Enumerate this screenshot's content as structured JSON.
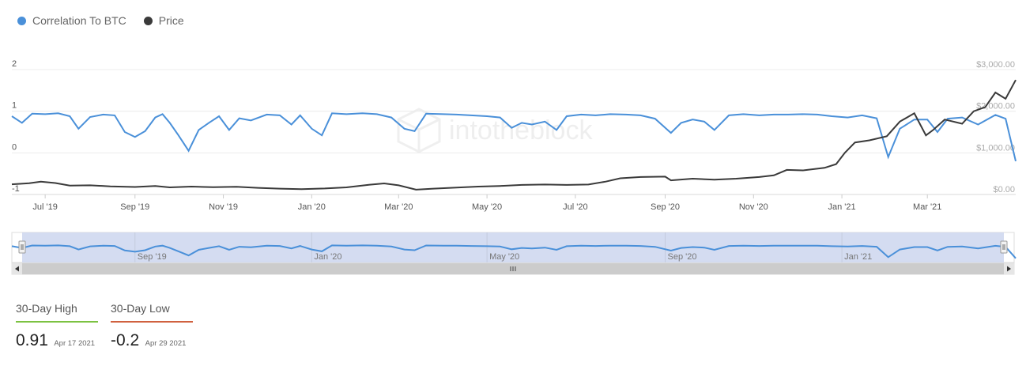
{
  "legend": {
    "correlation_label": "Correlation To BTC",
    "price_label": "Price"
  },
  "colors": {
    "correlation": "#4a90d9",
    "price": "#3a3a3a",
    "high": "#7cc242",
    "low": "#d0613f"
  },
  "watermark": "intotheblock",
  "chart_data": {
    "type": "line",
    "x_range": [
      "2019-06-08",
      "2021-05-01"
    ],
    "x_tick_labels": [
      "Jul '19",
      "Sep '19",
      "Nov '19",
      "Jan '20",
      "Mar '20",
      "May '20",
      "Jul '20",
      "Sep '20",
      "Nov '20",
      "Jan '21",
      "Mar '21"
    ],
    "y_left": {
      "range": [
        -1,
        2
      ],
      "ticks": [
        "2",
        "1",
        "0",
        "-1"
      ]
    },
    "y_right": {
      "range": [
        0,
        3000
      ],
      "ticks": [
        "$3,000.00",
        "$2,000.00",
        "$1,000.00",
        "$0.00"
      ]
    },
    "series": [
      {
        "name": "Correlation To BTC",
        "axis": "left",
        "x": [
          "2019-06-08",
          "2019-06-15",
          "2019-06-22",
          "2019-07-01",
          "2019-07-10",
          "2019-07-18",
          "2019-07-24",
          "2019-08-01",
          "2019-08-10",
          "2019-08-18",
          "2019-08-25",
          "2019-09-01",
          "2019-09-08",
          "2019-09-15",
          "2019-09-20",
          "2019-09-25",
          "2019-10-01",
          "2019-10-08",
          "2019-10-15",
          "2019-10-22",
          "2019-10-29",
          "2019-11-05",
          "2019-11-12",
          "2019-11-20",
          "2019-12-01",
          "2019-12-10",
          "2019-12-18",
          "2019-12-24",
          "2020-01-01",
          "2020-01-08",
          "2020-01-15",
          "2020-01-25",
          "2020-02-05",
          "2020-02-15",
          "2020-02-25",
          "2020-03-05",
          "2020-03-12",
          "2020-03-20",
          "2020-04-01",
          "2020-04-10",
          "2020-04-20",
          "2020-05-01",
          "2020-05-10",
          "2020-05-18",
          "2020-05-25",
          "2020-06-01",
          "2020-06-10",
          "2020-06-18",
          "2020-06-25",
          "2020-07-05",
          "2020-07-15",
          "2020-07-25",
          "2020-08-05",
          "2020-08-15",
          "2020-08-25",
          "2020-09-05",
          "2020-09-12",
          "2020-09-20",
          "2020-09-28",
          "2020-10-05",
          "2020-10-15",
          "2020-10-25",
          "2020-11-05",
          "2020-11-15",
          "2020-11-25",
          "2020-12-05",
          "2020-12-15",
          "2020-12-25",
          "2021-01-05",
          "2021-01-15",
          "2021-01-25",
          "2021-02-02",
          "2021-02-10",
          "2021-02-20",
          "2021-03-01",
          "2021-03-08",
          "2021-03-15",
          "2021-03-25",
          "2021-04-05",
          "2021-04-17",
          "2021-04-24",
          "2021-05-01"
        ],
        "values": [
          0.88,
          0.72,
          0.94,
          0.93,
          0.95,
          0.88,
          0.58,
          0.86,
          0.92,
          0.9,
          0.5,
          0.38,
          0.52,
          0.85,
          0.93,
          0.72,
          0.42,
          0.05,
          0.55,
          0.72,
          0.88,
          0.55,
          0.83,
          0.78,
          0.92,
          0.9,
          0.68,
          0.9,
          0.58,
          0.42,
          0.95,
          0.93,
          0.95,
          0.93,
          0.85,
          0.58,
          0.52,
          0.94,
          0.93,
          0.92,
          0.9,
          0.88,
          0.85,
          0.6,
          0.72,
          0.68,
          0.75,
          0.55,
          0.88,
          0.92,
          0.9,
          0.93,
          0.92,
          0.9,
          0.82,
          0.48,
          0.72,
          0.8,
          0.75,
          0.55,
          0.9,
          0.93,
          0.9,
          0.92,
          0.92,
          0.93,
          0.92,
          0.88,
          0.85,
          0.9,
          0.83,
          -0.1,
          0.58,
          0.8,
          0.8,
          0.5,
          0.82,
          0.85,
          0.68,
          0.91,
          0.82,
          -0.2
        ]
      },
      {
        "name": "Price",
        "axis": "right",
        "x": [
          "2019-06-08",
          "2019-06-20",
          "2019-06-28",
          "2019-07-08",
          "2019-07-18",
          "2019-08-01",
          "2019-08-15",
          "2019-09-01",
          "2019-09-15",
          "2019-09-25",
          "2019-10-10",
          "2019-10-25",
          "2019-11-10",
          "2019-11-25",
          "2019-12-10",
          "2019-12-25",
          "2020-01-10",
          "2020-01-25",
          "2020-02-10",
          "2020-02-20",
          "2020-03-01",
          "2020-03-13",
          "2020-03-25",
          "2020-04-10",
          "2020-04-25",
          "2020-05-10",
          "2020-05-25",
          "2020-06-10",
          "2020-06-25",
          "2020-07-10",
          "2020-07-22",
          "2020-08-01",
          "2020-08-15",
          "2020-09-01",
          "2020-09-05",
          "2020-09-20",
          "2020-10-05",
          "2020-10-20",
          "2020-11-05",
          "2020-11-15",
          "2020-11-24",
          "2020-12-05",
          "2020-12-20",
          "2020-12-28",
          "2021-01-03",
          "2021-01-10",
          "2021-01-20",
          "2021-02-01",
          "2021-02-10",
          "2021-02-20",
          "2021-02-28",
          "2021-03-05",
          "2021-03-13",
          "2021-03-25",
          "2021-04-02",
          "2021-04-10",
          "2021-04-17",
          "2021-04-24",
          "2021-05-01"
        ],
        "values": [
          245,
          270,
          310,
          275,
          215,
          220,
          195,
          180,
          205,
          170,
          190,
          175,
          185,
          160,
          140,
          130,
          145,
          170,
          235,
          265,
          220,
          115,
          140,
          165,
          190,
          205,
          230,
          240,
          230,
          240,
          310,
          390,
          420,
          430,
          340,
          380,
          355,
          380,
          420,
          460,
          590,
          580,
          640,
          730,
          1000,
          1250,
          1300,
          1400,
          1750,
          1950,
          1420,
          1550,
          1800,
          1700,
          2000,
          2100,
          2450,
          2300,
          2750
        ]
      }
    ],
    "navigator": {
      "x_tick_labels": [
        "Sep '19",
        "Jan '20",
        "May '20",
        "Sep '20",
        "Jan '21"
      ]
    }
  },
  "stats": {
    "high": {
      "label": "30-Day High",
      "value": "0.91",
      "date": "Apr 17 2021"
    },
    "low": {
      "label": "30-Day Low",
      "value": "-0.2",
      "date": "Apr 29 2021"
    }
  }
}
